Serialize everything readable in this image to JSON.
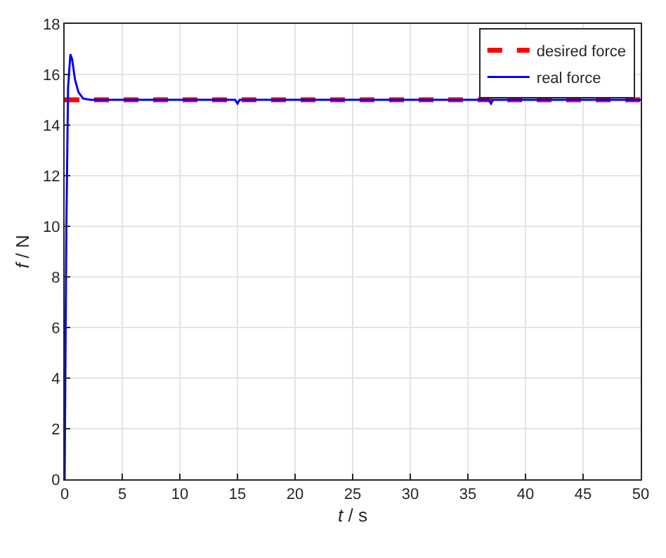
{
  "chart_data": {
    "type": "line",
    "xlabel": "t / s",
    "ylabel": "f / N",
    "xlim": [
      0,
      50
    ],
    "xticks": [
      0,
      5,
      10,
      15,
      20,
      25,
      30,
      35,
      40,
      45,
      50
    ],
    "ylim": [
      0,
      18
    ],
    "yticks": [
      0,
      2,
      4,
      6,
      8,
      10,
      12,
      14,
      16,
      18
    ],
    "grid": true,
    "legend": "top right",
    "series": [
      {
        "name": "desired force",
        "color": "#ff0000",
        "line_style": "dashed",
        "x": [
          0,
          50
        ],
        "values": [
          15,
          15
        ]
      },
      {
        "name": "real force",
        "color": "#0000ff",
        "line_style": "solid",
        "x": [
          0,
          0.15,
          0.3,
          0.5,
          0.65,
          0.9,
          1.2,
          1.6,
          2.2,
          14.8,
          15,
          15.2,
          36.8,
          37,
          37.2,
          50
        ],
        "values": [
          0,
          10,
          15.5,
          16.8,
          16.6,
          15.8,
          15.3,
          15.05,
          15,
          15,
          14.85,
          15,
          15,
          14.85,
          15,
          15
        ]
      }
    ]
  }
}
